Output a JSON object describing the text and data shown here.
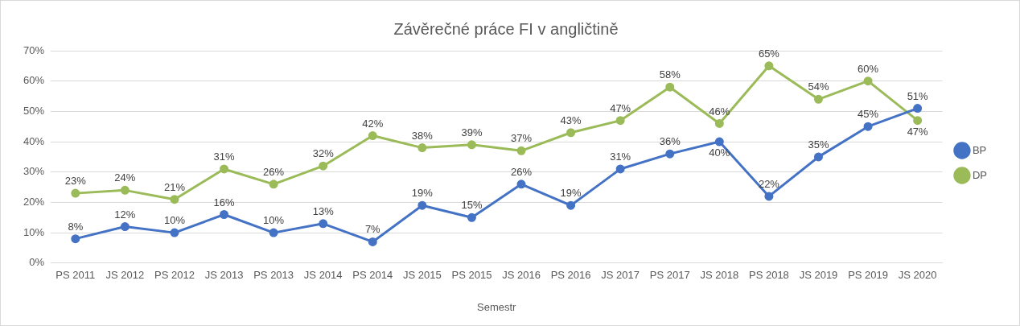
{
  "chart_data": {
    "type": "line",
    "title": "Závěrečné práce FI v angličtině",
    "xlabel": "Semestr",
    "categories": [
      "PS 2011",
      "JS 2012",
      "PS 2012",
      "JS 2013",
      "PS 2013",
      "JS 2014",
      "PS 2014",
      "JS 2015",
      "PS 2015",
      "JS 2016",
      "PS 2016",
      "JS 2017",
      "PS 2017",
      "JS 2018",
      "PS 2018",
      "JS 2019",
      "PS 2019",
      "JS 2020"
    ],
    "series": [
      {
        "name": "BP",
        "color": "#4472c4",
        "values": [
          8,
          12,
          10,
          16,
          10,
          13,
          7,
          19,
          15,
          26,
          19,
          31,
          36,
          40,
          22,
          35,
          45,
          51
        ],
        "value_labels": [
          "8%",
          "12%",
          "10%",
          "16%",
          "10%",
          "13%",
          "7%",
          "19%",
          "15%",
          "26%",
          "19%",
          "31%",
          "36%",
          "40%",
          "22%",
          "35%",
          "45%",
          "51%"
        ]
      },
      {
        "name": "DP",
        "color": "#9bbb59",
        "values": [
          23,
          24,
          21,
          31,
          26,
          32,
          42,
          38,
          39,
          37,
          43,
          47,
          58,
          46,
          65,
          54,
          60,
          47
        ],
        "value_labels": [
          "23%",
          "24%",
          "21%",
          "31%",
          "26%",
          "32%",
          "42%",
          "38%",
          "39%",
          "37%",
          "43%",
          "47%",
          "58%",
          "46%",
          "65%",
          "54%",
          "60%",
          "47%"
        ]
      }
    ],
    "ylim": [
      0,
      70
    ],
    "yticks": [
      {
        "value": 0,
        "label": "0%"
      },
      {
        "value": 10,
        "label": "10%"
      },
      {
        "value": 20,
        "label": "20%"
      },
      {
        "value": 30,
        "label": "30%"
      },
      {
        "value": 40,
        "label": "40%"
      },
      {
        "value": 50,
        "label": "50%"
      },
      {
        "value": 60,
        "label": "60%"
      },
      {
        "value": 70,
        "label": "70%"
      }
    ],
    "grid": "y",
    "legend": "right",
    "marker": "circle",
    "line_style": "solid"
  }
}
